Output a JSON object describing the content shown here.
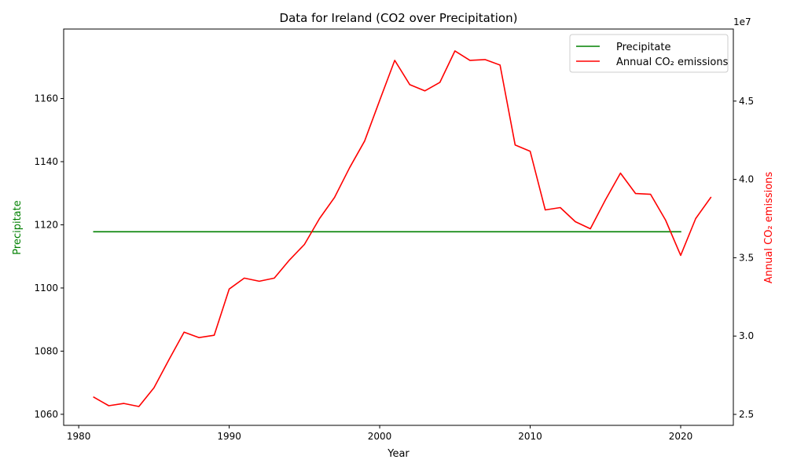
{
  "chart_data": {
    "type": "line",
    "title": "Data for Ireland (CO2 over Precipitation)",
    "xlabel": "Year",
    "x_ticks": [
      1980,
      1990,
      2000,
      2010,
      2020
    ],
    "xlim": [
      1979,
      2023.5
    ],
    "left_axis": {
      "label": "Precipitate",
      "color": "#008000",
      "ylim": [
        1056.5,
        1182
      ],
      "ticks": [
        1060,
        1080,
        1100,
        1120,
        1140,
        1160
      ]
    },
    "right_axis": {
      "label": "Annual CO₂ emissions",
      "color": "#ff0000",
      "ylim": [
        24300000,
        49600000
      ],
      "ticks": [
        25000000,
        30000000,
        35000000,
        40000000,
        45000000
      ],
      "tick_labels": [
        "2.5",
        "3.0",
        "3.5",
        "4.0",
        "4.5"
      ],
      "offset_text": "1e7"
    },
    "legend": {
      "placement": "top-right"
    },
    "series": [
      {
        "name": "Precipitate",
        "axis": "left",
        "color": "#008000",
        "x": [
          1981,
          2020
        ],
        "values": [
          1117.8,
          1117.8
        ]
      },
      {
        "name": "Annual CO₂ emissions",
        "axis": "right",
        "color": "#ff0000",
        "x": [
          1981,
          1982,
          1983,
          1984,
          1985,
          1986,
          1987,
          1988,
          1989,
          1990,
          1991,
          1992,
          1993,
          1994,
          1995,
          1996,
          1997,
          1998,
          1999,
          2000,
          2001,
          2002,
          2003,
          2004,
          2005,
          2006,
          2007,
          2008,
          2009,
          2010,
          2011,
          2012,
          2013,
          2014,
          2015,
          2016,
          2017,
          2018,
          2019,
          2020,
          2021,
          2022
        ],
        "values": [
          26100000,
          25550000,
          25700000,
          25500000,
          26700000,
          28500000,
          30250000,
          29900000,
          30050000,
          33000000,
          33700000,
          33500000,
          33700000,
          34850000,
          35850000,
          37500000,
          38850000,
          40750000,
          42450000,
          45050000,
          47600000,
          46050000,
          45650000,
          46200000,
          48200000,
          47600000,
          47650000,
          47300000,
          42200000,
          41800000,
          38050000,
          38200000,
          37300000,
          36850000,
          38700000,
          40400000,
          39100000,
          39050000,
          37400000,
          35150000,
          37500000,
          38850000
        ]
      }
    ]
  }
}
